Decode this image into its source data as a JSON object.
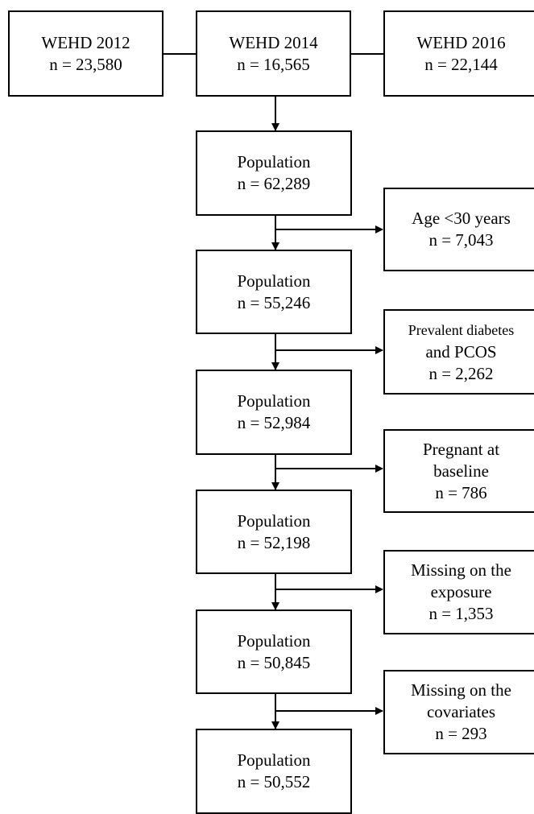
{
  "sources": [
    {
      "title": "WEHD 2012",
      "n": "n = 23,580"
    },
    {
      "title": "WEHD 2014",
      "n": "n = 16,565"
    },
    {
      "title": "WEHD 2016",
      "n": "n = 22,144"
    }
  ],
  "populations": [
    {
      "title": "Population",
      "n": "n = 62,289"
    },
    {
      "title": "Population",
      "n": "n = 55,246"
    },
    {
      "title": "Population",
      "n": "n = 52,984"
    },
    {
      "title": "Population",
      "n": "n = 52,198"
    },
    {
      "title": "Population",
      "n": "n = 50,845"
    },
    {
      "title": "Population",
      "n": "n = 50,552"
    }
  ],
  "exclusions": [
    {
      "lines": [
        "Age <30 years",
        "n = 7,043"
      ]
    },
    {
      "lines": [
        "Prevalent diabetes",
        "and PCOS",
        "n = 2,262"
      ]
    },
    {
      "lines": [
        "Pregnant at",
        "baseline",
        "n = 786"
      ]
    },
    {
      "lines": [
        "Missing on the",
        "exposure",
        "n = 1,353"
      ]
    },
    {
      "lines": [
        "Missing on the",
        "covariates",
        "n = 293"
      ]
    }
  ]
}
